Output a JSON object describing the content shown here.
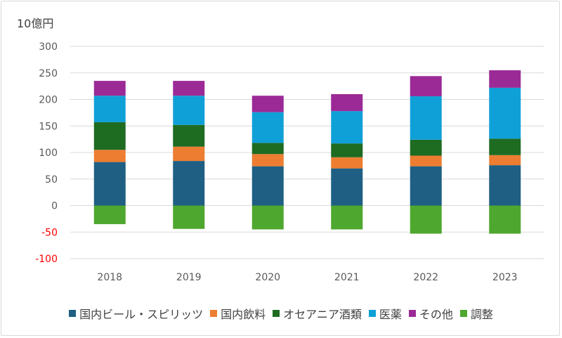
{
  "chart_data": {
    "type": "bar",
    "stacked": true,
    "unit_label": "10億円",
    "categories": [
      "2018",
      "2019",
      "2020",
      "2021",
      "2022",
      "2023"
    ],
    "ylim": [
      -100,
      300
    ],
    "yticks": [
      -100,
      -50,
      0,
      50,
      100,
      150,
      200,
      250,
      300
    ],
    "negative_tick_color": "#ff0000",
    "grid": true,
    "legend_position": "bottom",
    "series": [
      {
        "name": "国内ビール・スピリッツ",
        "color": "#1f5f84",
        "values": [
          82,
          84,
          74,
          70,
          74,
          76
        ]
      },
      {
        "name": "国内飲料",
        "color": "#ed7d31",
        "values": [
          23,
          27,
          23,
          21,
          20,
          19
        ]
      },
      {
        "name": "オセアニア酒類",
        "color": "#1e6b22",
        "values": [
          52,
          41,
          21,
          26,
          30,
          31
        ]
      },
      {
        "name": "医薬",
        "color": "#10a0d8",
        "values": [
          50,
          55,
          58,
          61,
          82,
          96
        ]
      },
      {
        "name": "その他",
        "color": "#9b2a96",
        "values": [
          28,
          28,
          31,
          32,
          38,
          33
        ]
      },
      {
        "name": "調整",
        "color": "#4ea72e",
        "values": [
          -35,
          -44,
          -45,
          -45,
          -53,
          -53
        ]
      }
    ]
  }
}
